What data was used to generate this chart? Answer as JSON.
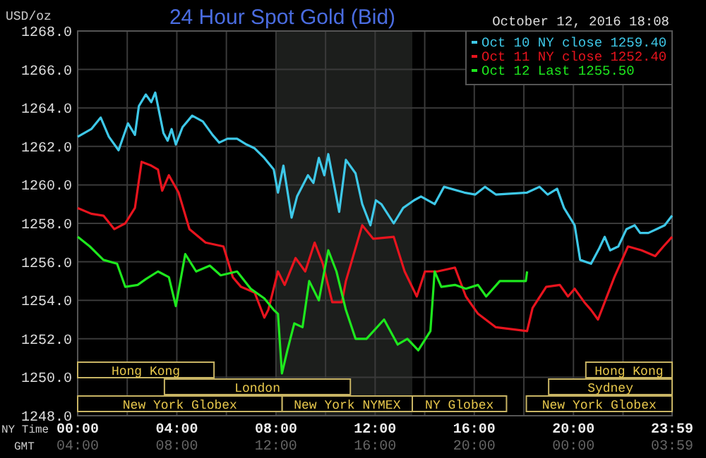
{
  "chart_data": {
    "type": "line",
    "title": "24 Hour Spot Gold (Bid)",
    "subtitle": "October 12, 2016 18:08",
    "ylabel": "USD/oz",
    "xlabel": "NY Time",
    "x2label": "GMT",
    "xlim": [
      0,
      23.98
    ],
    "xticks": [
      {
        "value": 0,
        "label": "00:00"
      },
      {
        "value": 2,
        "label": null
      },
      {
        "value": 4,
        "label": "04:00"
      },
      {
        "value": 6,
        "label": null
      },
      {
        "value": 8,
        "label": "08:00"
      },
      {
        "value": 10,
        "label": null
      },
      {
        "value": 12,
        "label": "12:00"
      },
      {
        "value": 14,
        "label": null
      },
      {
        "value": 16,
        "label": "16:00"
      },
      {
        "value": 18,
        "label": null
      },
      {
        "value": 20,
        "label": "20:00"
      },
      {
        "value": 22,
        "label": null
      },
      {
        "value": 23.98,
        "label": "23:59"
      }
    ],
    "x2lim": [
      "2016-10-12T04:00",
      "2016-10-13T03:59"
    ],
    "x2ticks": [
      {
        "value": "2016-10-12T04:00",
        "label": "04:00"
      },
      {
        "value": "2016-10-12T08:00",
        "label": "08:00"
      },
      {
        "value": "2016-10-12T12:00",
        "label": "12:00"
      },
      {
        "value": "2016-10-12T16:00",
        "label": "16:00"
      },
      {
        "value": "2016-10-12T20:00",
        "label": "20:00"
      },
      {
        "value": "2016-10-13T00:00",
        "label": "00:00"
      },
      {
        "value": "2016-10-13T03:59",
        "label": "03:59"
      }
    ],
    "ylim": [
      1248,
      1268
    ],
    "yticks": [
      {
        "value": 1248,
        "label": "1248.0"
      },
      {
        "value": 1250,
        "label": "1250.0"
      },
      {
        "value": 1252,
        "label": "1252.0"
      },
      {
        "value": 1254,
        "label": "1254.0"
      },
      {
        "value": 1256,
        "label": "1256.0"
      },
      {
        "value": 1258,
        "label": "1258.0"
      },
      {
        "value": 1260,
        "label": "1260.0"
      },
      {
        "value": 1262,
        "label": "1262.0"
      },
      {
        "value": 1264,
        "label": "1264.0"
      },
      {
        "value": 1266,
        "label": "1266.0"
      },
      {
        "value": 1268,
        "label": "1268.0"
      }
    ],
    "grid": true,
    "legend": "top right",
    "line_style": "solid",
    "marker": "none",
    "bands": [
      {
        "axis": "x",
        "from": 8,
        "to": 13.5,
        "label": null,
        "color": "#1c1e1c"
      },
      {
        "axis": "x",
        "from": 0,
        "to": 8.25,
        "label": "New York Globex",
        "color": "#c8b464"
      },
      {
        "axis": "x",
        "from": 8.25,
        "to": 13.5,
        "label": "New York NYMEX",
        "color": "#c8b464"
      },
      {
        "axis": "x",
        "from": 13.5,
        "to": 17.3,
        "label": "NY Globex",
        "color": "#c8b464"
      },
      {
        "axis": "x",
        "from": 18.1,
        "to": 23.98,
        "label": "New York Globex",
        "color": "#c8b464"
      },
      {
        "axis": "x",
        "from": 3.5,
        "to": 11,
        "label": "London",
        "color": "#c8b464"
      },
      {
        "axis": "x",
        "from": 19,
        "to": 23.98,
        "label": "Sydney",
        "color": "#c8b464"
      },
      {
        "axis": "x",
        "from": 0,
        "to": 5.5,
        "label": "Hong Kong",
        "color": "#c8b464"
      },
      {
        "axis": "x",
        "from": 20.5,
        "to": 23.98,
        "label": "Hong Kong",
        "color": "#c8b464"
      }
    ],
    "series": [
      {
        "name": "Oct 10 NY close 1259.40",
        "color": "#3ec8e8",
        "x": [
          0,
          0.55,
          0.93,
          1.26,
          1.65,
          2.03,
          2.31,
          2.47,
          2.75,
          2.97,
          3.13,
          3.46,
          3.63,
          3.79,
          3.96,
          4.23,
          4.62,
          5.05,
          5.44,
          5.71,
          6.04,
          6.43,
          6.81,
          7.14,
          7.53,
          7.91,
          8.08,
          8.3,
          8.63,
          8.85,
          9.29,
          9.51,
          9.73,
          9.95,
          10.11,
          10.33,
          10.55,
          10.82,
          11.21,
          11.48,
          11.81,
          12.03,
          12.25,
          12.75,
          13.13,
          13.57,
          13.85,
          14.4,
          14.78,
          15.6,
          16.04,
          16.43,
          16.87,
          18.13,
          18.63,
          18.96,
          19.34,
          19.62,
          20.05,
          20.27,
          20.71,
          21.04,
          21.26,
          21.48,
          21.81,
          22.14,
          22.47,
          22.69,
          23.02,
          23.35,
          23.68,
          23.98
        ],
        "values": [
          1262.5,
          1262.9,
          1263.5,
          1262.5,
          1261.8,
          1263.2,
          1262.6,
          1264.1,
          1264.7,
          1264.3,
          1264.8,
          1262.7,
          1262.3,
          1262.9,
          1262.1,
          1263.0,
          1263.6,
          1263.3,
          1262.6,
          1262.2,
          1262.4,
          1262.4,
          1262.1,
          1261.9,
          1261.4,
          1260.8,
          1259.6,
          1261.0,
          1258.3,
          1259.4,
          1260.5,
          1260.1,
          1261.4,
          1260.5,
          1261.6,
          1260.1,
          1258.6,
          1261.3,
          1260.6,
          1259.0,
          1257.9,
          1259.2,
          1259.0,
          1258.0,
          1258.8,
          1259.2,
          1259.4,
          1259.0,
          1259.9,
          1259.6,
          1259.5,
          1259.9,
          1259.5,
          1259.6,
          1259.9,
          1259.5,
          1259.8,
          1258.8,
          1257.9,
          1256.1,
          1255.9,
          1256.7,
          1257.3,
          1256.6,
          1256.8,
          1257.7,
          1257.9,
          1257.5,
          1257.5,
          1257.7,
          1257.9,
          1258.4
        ]
      },
      {
        "name": "Oct 11 NY close 1252.40",
        "color": "#e8141e",
        "x": [
          0,
          0.55,
          1.04,
          1.48,
          1.92,
          2.31,
          2.58,
          2.97,
          3.24,
          3.41,
          3.68,
          4.07,
          4.51,
          5.16,
          5.88,
          6.26,
          6.59,
          7.14,
          7.53,
          7.69,
          8.08,
          8.35,
          8.79,
          9.18,
          9.56,
          9.89,
          10.27,
          10.66,
          10.82,
          11.48,
          11.92,
          12.75,
          13.19,
          13.68,
          14.01,
          14.51,
          15.22,
          15.66,
          16.15,
          16.87,
          18.13,
          18.35,
          18.9,
          19.45,
          19.78,
          20.05,
          20.44,
          20.71,
          20.99,
          21.26,
          21.65,
          22.2,
          22.75,
          23.3,
          23.63,
          23.98
        ],
        "values": [
          1258.8,
          1258.5,
          1258.4,
          1257.7,
          1258.0,
          1258.8,
          1261.2,
          1261.0,
          1260.8,
          1259.7,
          1260.5,
          1259.6,
          1257.7,
          1257.0,
          1256.8,
          1255.2,
          1254.7,
          1254.4,
          1253.1,
          1253.5,
          1255.5,
          1254.8,
          1256.2,
          1255.5,
          1257.0,
          1255.9,
          1253.9,
          1253.9,
          1255.0,
          1257.9,
          1257.2,
          1257.3,
          1255.5,
          1254.2,
          1255.5,
          1255.5,
          1255.7,
          1254.2,
          1253.3,
          1252.6,
          1252.4,
          1253.6,
          1254.7,
          1254.8,
          1254.2,
          1254.6,
          1253.9,
          1253.5,
          1253.0,
          1253.9,
          1255.2,
          1256.8,
          1256.6,
          1256.3,
          1256.8,
          1257.3
        ]
      },
      {
        "name": "Oct 12 Last 1255.50",
        "color": "#1ee81e",
        "x": [
          0,
          0.49,
          1.04,
          1.59,
          1.92,
          2.42,
          2.75,
          3.24,
          3.68,
          3.96,
          4.34,
          4.78,
          5.33,
          5.77,
          6.43,
          6.98,
          7.53,
          7.91,
          8.08,
          8.24,
          8.46,
          8.74,
          9.07,
          9.34,
          9.73,
          10.11,
          10.44,
          10.82,
          11.21,
          11.65,
          12.36,
          12.91,
          13.3,
          13.74,
          14.23,
          14.4,
          14.67,
          15.22,
          15.66,
          16.15,
          16.48,
          17.03,
          18.08,
          18.13
        ],
        "values": [
          1257.3,
          1256.8,
          1256.1,
          1255.9,
          1254.7,
          1254.8,
          1255.1,
          1255.5,
          1255.2,
          1253.7,
          1256.4,
          1255.5,
          1255.8,
          1255.3,
          1255.5,
          1254.6,
          1254.1,
          1253.5,
          1253.3,
          1250.2,
          1251.4,
          1252.8,
          1252.6,
          1255.0,
          1254.0,
          1256.6,
          1255.5,
          1253.5,
          1252.0,
          1252.0,
          1253.0,
          1251.7,
          1252.0,
          1251.4,
          1252.4,
          1255.5,
          1254.7,
          1254.8,
          1254.6,
          1254.8,
          1254.2,
          1255.0,
          1255.0,
          1255.5
        ]
      }
    ]
  }
}
